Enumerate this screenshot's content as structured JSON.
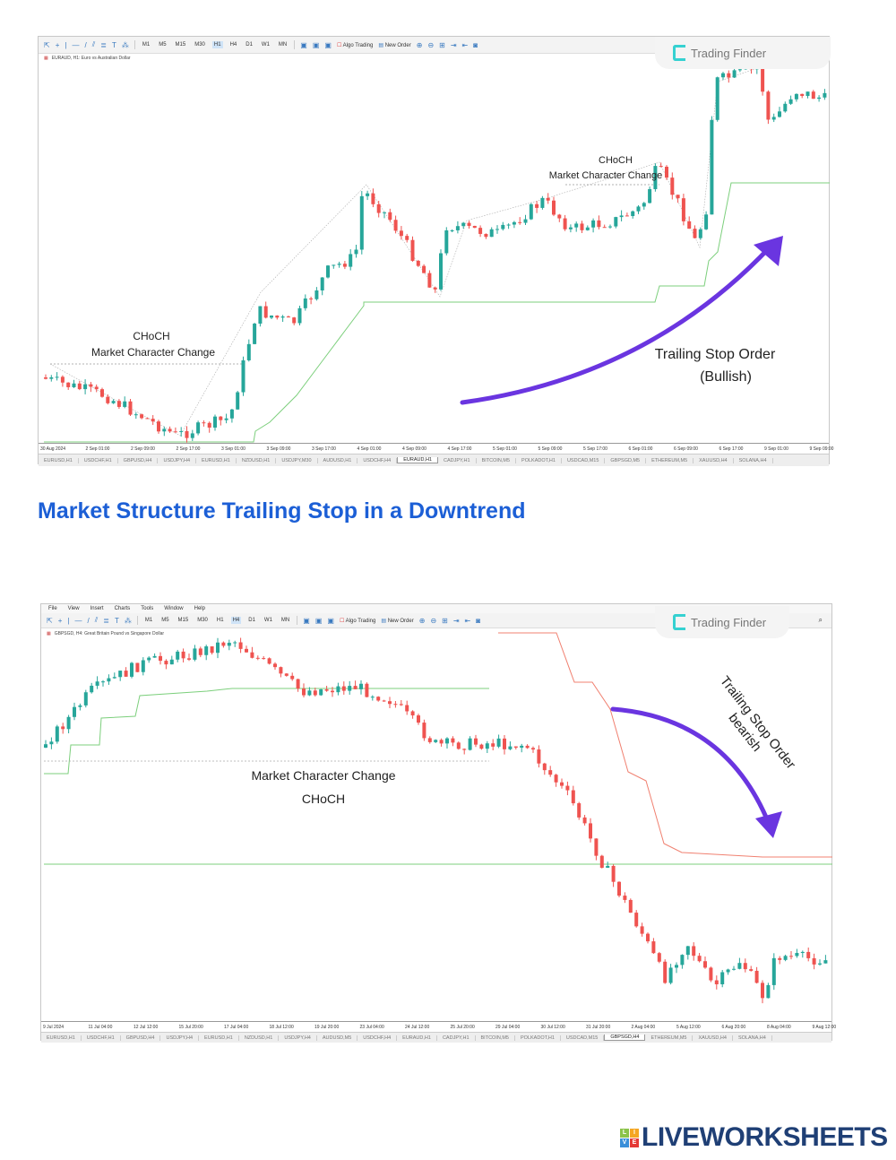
{
  "chart1": {
    "toolbar": {
      "timeframes": [
        "M1",
        "M5",
        "M15",
        "M30",
        "H1",
        "H4",
        "D1",
        "W1",
        "MN"
      ],
      "active_timeframe": "H1",
      "algo_trading": "Algo Trading",
      "new_order": "New Order"
    },
    "symbol_title": "EURAUD, H1: Euro vs Australian Dollar",
    "brand": "Trading Finder",
    "time_axis": [
      "30 Aug 2024",
      "2 Sep 01:00",
      "2 Sep 09:00",
      "2 Sep 17:00",
      "3 Sep 01:00",
      "3 Sep 09:00",
      "3 Sep 17:00",
      "4 Sep 01:00",
      "4 Sep 09:00",
      "4 Sep 17:00",
      "5 Sep 01:00",
      "5 Sep 09:00",
      "5 Sep 17:00",
      "6 Sep 01:00",
      "6 Sep 09:00",
      "6 Sep 17:00",
      "9 Sep 01:00",
      "9 Sep 09:00"
    ],
    "tabs": [
      "EURUSD,H1",
      "USDCHF,H1",
      "GBPUSD,H4",
      "USDJPY,H4",
      "EURUSD,H1",
      "NZDUSD,H1",
      "USDJPY,M30",
      "AUDUSD,H1",
      "USDCHF,H4",
      "EURAUD,H1",
      "CADJPY,H1",
      "BITCOIN,M5",
      "POLKADOT,H1",
      "USDCAD,M15",
      "GBPSGD,M5",
      "ETHEREUM,M5",
      "XAUUSD,H4",
      "SOLANA,H4"
    ],
    "active_tab": "EURAUD,H1",
    "annotations": {
      "choch1": "CHoCH",
      "mcc1": "Market Character Change",
      "choch2": "CHoCH",
      "mcc2": "Market Character Change",
      "trailing": "Trailing Stop Order",
      "direction": "(Bullish)"
    }
  },
  "heading": "Market Structure Trailing Stop in a Downtrend",
  "chart2": {
    "menu": [
      "File",
      "View",
      "Insert",
      "Charts",
      "Tools",
      "Window",
      "Help"
    ],
    "toolbar": {
      "timeframes": [
        "M1",
        "M5",
        "M15",
        "M30",
        "H1",
        "H4",
        "D1",
        "W1",
        "MN"
      ],
      "active_timeframe": "H4",
      "algo_trading": "Algo Trading",
      "new_order": "New Order"
    },
    "symbol_title": "GBPSGD, H4: Great Britain Pound vs Singapore Dollar",
    "brand": "Trading Finder",
    "time_axis": [
      "9 Jul 2024",
      "11 Jul 04:00",
      "12 Jul 12:00",
      "15 Jul 20:00",
      "17 Jul 04:00",
      "18 Jul 12:00",
      "19 Jul 20:00",
      "23 Jul 04:00",
      "24 Jul 12:00",
      "25 Jul 20:00",
      "29 Jul 04:00",
      "30 Jul 12:00",
      "31 Jul 20:00",
      "2 Aug 04:00",
      "5 Aug 12:00",
      "6 Aug 20:00",
      "8 Aug 04:00",
      "9 Aug 12:00"
    ],
    "tabs": [
      "EURUSD,H1",
      "USDCHF,H1",
      "GBPUSD,H4",
      "USDJPY,H4",
      "EURUSD,H1",
      "NZDUSD,H1",
      "USDJPY,H4",
      "AUDUSD,M5",
      "USDCHF,H4",
      "EURAUD,H1",
      "CADJPY,H1",
      "BITCOIN,M5",
      "POLKADOT,H1",
      "USDCAD,M15",
      "GBPSGD,H4",
      "ETHEREUM,M5",
      "XAUUSD,H4",
      "SOLANA,H4"
    ],
    "active_tab": "GBPSGD,H4",
    "annotations": {
      "mcc": "Market Character Change",
      "choch": "CHoCH",
      "trailing": "Trailing Stop Order",
      "direction": "bearish"
    }
  },
  "footer": {
    "brand": "LIVEWORKSHEETS",
    "blocks": [
      "L",
      "I",
      "V",
      "E"
    ]
  },
  "colors": {
    "bull": "#26a69a",
    "bear": "#ef5350",
    "trail_green": "#7ccf7c",
    "trail_red": "#f08070",
    "arrow": "#6a35e0",
    "heading": "#1c5fd6"
  }
}
